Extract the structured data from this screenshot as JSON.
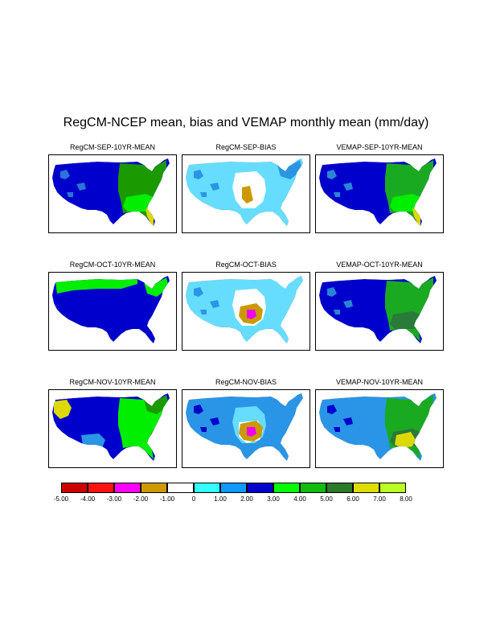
{
  "title": "RegCM-NCEP mean, bias and VEMAP monthly mean (mm/day)",
  "panels": [
    {
      "title": "RegCM-SEP-10YR-MEAN",
      "type": "mean",
      "row": 0,
      "col": 0,
      "base": "#0000cc",
      "regions": [
        {
          "color": "#1a9900",
          "shape": "east"
        },
        {
          "color": "#2a75d6",
          "shape": "west-spots"
        },
        {
          "color": "#00ee00",
          "shape": "southeast"
        },
        {
          "color": "#ddd800",
          "shape": "florida"
        }
      ]
    },
    {
      "title": "RegCM-SEP-BIAS",
      "type": "bias",
      "row": 0,
      "col": 1,
      "base": "#66ddff",
      "regions": [
        {
          "color": "#ffffff",
          "shape": "center"
        },
        {
          "color": "#2a95e6",
          "shape": "west-spots"
        },
        {
          "color": "#cc9900",
          "shape": "small-blob"
        },
        {
          "color": "#2a95e6",
          "shape": "northeast"
        }
      ]
    },
    {
      "title": "VEMAP-SEP-10YR-MEAN",
      "type": "mean",
      "row": 0,
      "col": 2,
      "base": "#0000cc",
      "regions": [
        {
          "color": "#1aaa22",
          "shape": "east"
        },
        {
          "color": "#00ee00",
          "shape": "southeast"
        },
        {
          "color": "#2a85d6",
          "shape": "west-spots"
        },
        {
          "color": "#ddd800",
          "shape": "florida"
        }
      ]
    },
    {
      "title": "RegCM-OCT-10YR-MEAN",
      "type": "mean",
      "row": 1,
      "col": 0,
      "base": "#0000cc",
      "regions": [
        {
          "color": "#00ee00",
          "shape": "north"
        },
        {
          "color": "#00ee00",
          "shape": "northeast"
        }
      ]
    },
    {
      "title": "RegCM-OCT-BIAS",
      "type": "bias",
      "row": 1,
      "col": 1,
      "base": "#66ddff",
      "regions": [
        {
          "color": "#2a95e6",
          "shape": "west-spots"
        },
        {
          "color": "#ffffff",
          "shape": "center"
        },
        {
          "color": "#cc9900",
          "shape": "mid-blob"
        },
        {
          "color": "#ee00ee",
          "shape": "core"
        }
      ]
    },
    {
      "title": "VEMAP-OCT-10YR-MEAN",
      "type": "mean",
      "row": 1,
      "col": 2,
      "base": "#0000cc",
      "regions": [
        {
          "color": "#1aaa22",
          "shape": "east"
        },
        {
          "color": "#2a7a3a",
          "shape": "southeast"
        },
        {
          "color": "#2a85d6",
          "shape": "west-spots"
        }
      ]
    },
    {
      "title": "RegCM-NOV-10YR-MEAN",
      "type": "mean",
      "row": 2,
      "col": 0,
      "base": "#0000cc",
      "regions": [
        {
          "color": "#00ee00",
          "shape": "east"
        },
        {
          "color": "#2a95e6",
          "shape": "south"
        },
        {
          "color": "#1a9900",
          "shape": "northeast"
        },
        {
          "color": "#ddd800",
          "shape": "northwest"
        }
      ]
    },
    {
      "title": "RegCM-NOV-BIAS",
      "type": "bias",
      "row": 2,
      "col": 1,
      "base": "#2a95e6",
      "regions": [
        {
          "color": "#66ddff",
          "shape": "center"
        },
        {
          "color": "#ffffff",
          "shape": "center-small"
        },
        {
          "color": "#cc9900",
          "shape": "mid-blob"
        },
        {
          "color": "#ee00ee",
          "shape": "core"
        },
        {
          "color": "#0000cc",
          "shape": "west-spots"
        }
      ]
    },
    {
      "title": "VEMAP-NOV-10YR-MEAN",
      "type": "mean",
      "row": 2,
      "col": 2,
      "base": "#2a95e6",
      "regions": [
        {
          "color": "#1aaa22",
          "shape": "east"
        },
        {
          "color": "#2a7a3a",
          "shape": "southeast"
        },
        {
          "color": "#ddd800",
          "shape": "florida-big"
        },
        {
          "color": "#0000cc",
          "shape": "west-spots"
        }
      ]
    }
  ],
  "colorbar": {
    "colors": [
      "#cc0000",
      "#ff1111",
      "#ff00ff",
      "#cc9900",
      "#ffffff",
      "#33ffff",
      "#1199ff",
      "#0000cc",
      "#00ff00",
      "#11bb11",
      "#2a7a2a",
      "#dddd00",
      "#bbff22"
    ],
    "labels": [
      "-5.00",
      "-4.00",
      "-3.00",
      "-2.00",
      "-1.00",
      "0",
      "1.00",
      "2.00",
      "3.00",
      "4.00",
      "5.00",
      "6.00",
      "7.00",
      "8.00"
    ]
  }
}
